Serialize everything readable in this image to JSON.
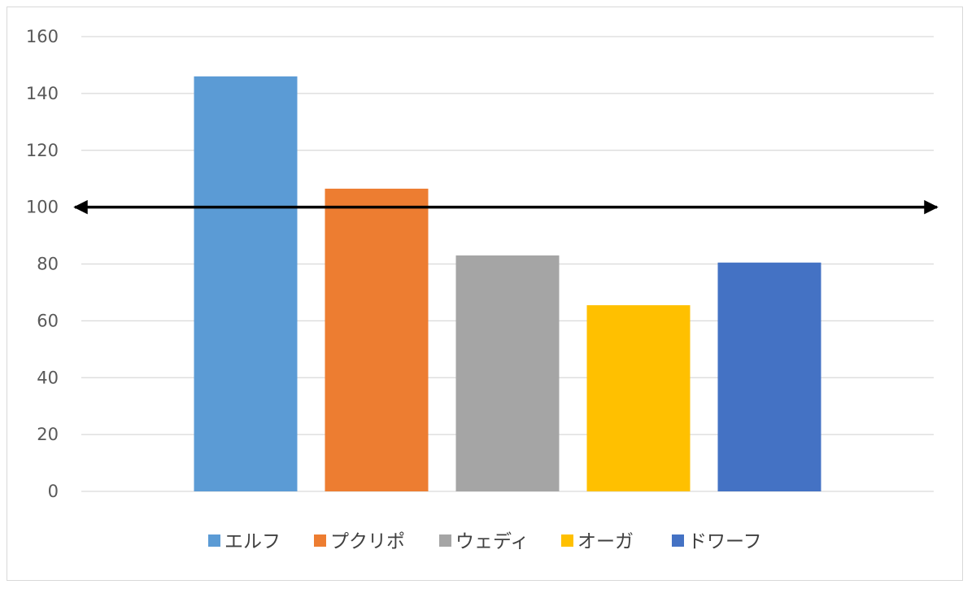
{
  "chart_data": {
    "type": "bar",
    "title": "",
    "xlabel": "",
    "ylabel": "",
    "categories": [
      "エルフ",
      "プクリポ",
      "ウェディ",
      "オーガ",
      "ドワーフ"
    ],
    "values": [
      146,
      106.5,
      83,
      65.5,
      80.5
    ],
    "colors": [
      "#5b9bd5",
      "#ed7d31",
      "#a5a5a5",
      "#ffc000",
      "#4472c4"
    ],
    "ylim": [
      0,
      160
    ],
    "yticks": [
      "0",
      "20",
      "40",
      "60",
      "80",
      "100",
      "120",
      "140",
      "160"
    ],
    "grid": true,
    "legend_position": "bottom",
    "reference_line": {
      "value": 100,
      "style": "double-headed arrow",
      "color": "#000000"
    }
  }
}
